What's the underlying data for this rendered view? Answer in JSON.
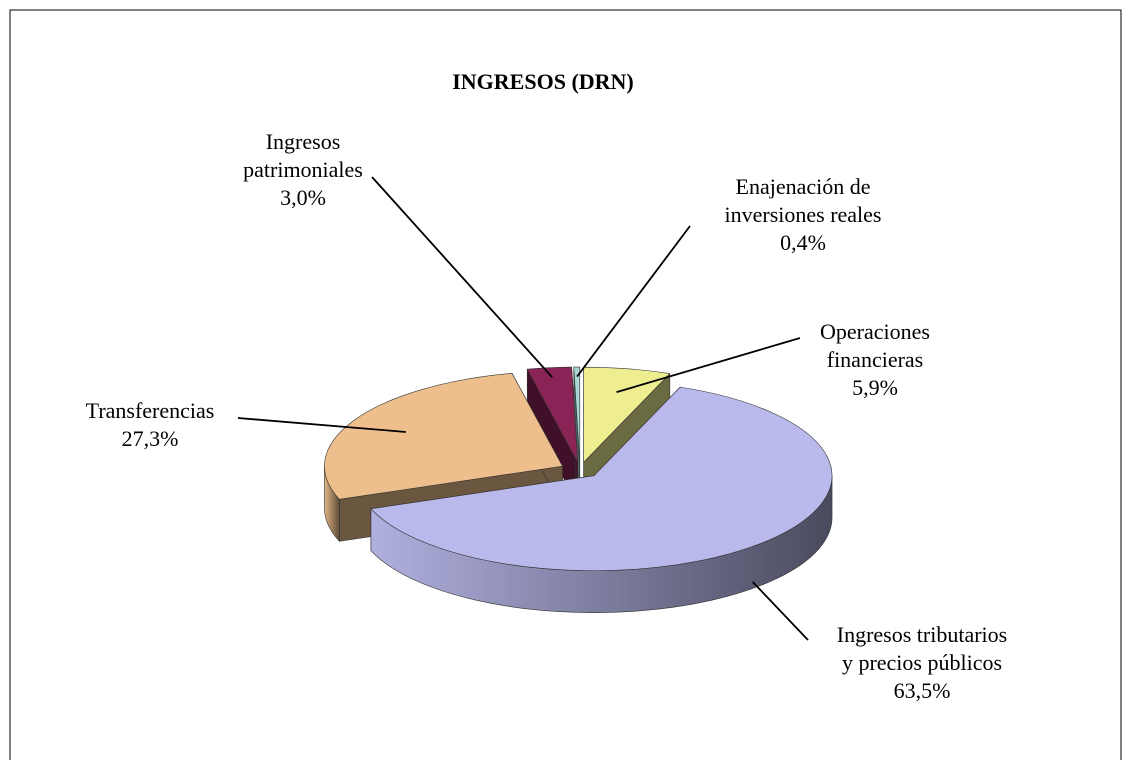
{
  "chart_data": {
    "type": "pie",
    "title": "INGRESOS (DRN)",
    "categories": [
      "Operaciones\nfinancieras",
      "Ingresos tributarios\ny precios públicos",
      "Transferencias",
      "Ingresos\npatrimoniales",
      "Enajenación de\ninversiones reales"
    ],
    "values": [
      5.9,
      63.5,
      27.3,
      3.0,
      0.4
    ],
    "value_labels": [
      "5,9%",
      "63,5%",
      "27,3%",
      "3,0%",
      "0,4%"
    ],
    "colors": [
      "#eeee90",
      "#b9b9ec",
      "#eebf8c",
      "#8b2456",
      "#a9d6d6"
    ]
  }
}
